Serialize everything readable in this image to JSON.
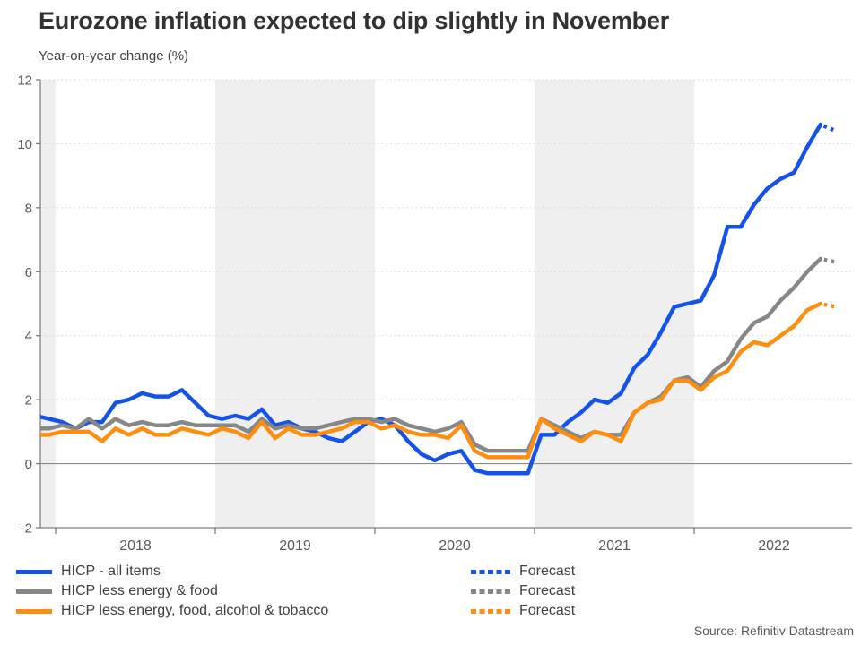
{
  "header": {
    "title": "Eurozone inflation expected to dip slightly in November",
    "subtitle": "Year-on-year change (%)"
  },
  "footer": {
    "source": "Source: Refinitiv Datastream"
  },
  "colors": {
    "blue": "#1553E8",
    "gray": "#878787",
    "orange": "#FF8E0F",
    "band": "#EFEFEF",
    "grid_dotted": "#D9D9D9",
    "zero_line": "#8C8C8C",
    "axis": "#808080",
    "axis_text": "#595959",
    "title_text": "#323232",
    "legend_text": "#404040"
  },
  "chart_data": {
    "type": "line",
    "title": "Eurozone inflation expected to dip slightly in November",
    "ylabel": "Year-on-year change (%)",
    "xlabel": "",
    "frequency": "monthly",
    "x_start": "Nov 2017",
    "x_end_actual": "Oct 2022",
    "x_forecast_point": "Nov 2022",
    "x_tick_labels": [
      "2018",
      "2019",
      "2020",
      "2021",
      "2022"
    ],
    "shaded_year_bands": [
      "late 2017",
      "2019",
      "2021"
    ],
    "ylim": [
      -2,
      12
    ],
    "y_ticks": [
      -2,
      0,
      2,
      4,
      6,
      8,
      10,
      12
    ],
    "grid": "horizontal dotted, solid line at zero",
    "legend_position": "bottom",
    "forecast_label": "Forecast",
    "series": [
      {
        "name": "HICP - all items",
        "color": "#1553E8",
        "values": [
          1.5,
          1.4,
          1.3,
          1.1,
          1.3,
          1.3,
          1.9,
          2.0,
          2.2,
          2.1,
          2.1,
          2.3,
          1.9,
          1.5,
          1.4,
          1.5,
          1.4,
          1.7,
          1.2,
          1.3,
          1.1,
          1.0,
          0.8,
          0.7,
          1.0,
          1.3,
          1.4,
          1.2,
          0.7,
          0.3,
          0.1,
          0.3,
          0.4,
          -0.2,
          -0.3,
          -0.3,
          -0.3,
          -0.3,
          0.9,
          0.9,
          1.3,
          1.6,
          2.0,
          1.9,
          2.2,
          3.0,
          3.4,
          4.1,
          4.9,
          5.0,
          5.1,
          5.9,
          7.4,
          7.4,
          8.1,
          8.6,
          8.9,
          9.1,
          9.9,
          10.6
        ],
        "forecast_value": 10.4
      },
      {
        "name": "HICP less energy & food",
        "color": "#878787",
        "values": [
          1.1,
          1.1,
          1.2,
          1.1,
          1.4,
          1.1,
          1.4,
          1.2,
          1.3,
          1.2,
          1.2,
          1.3,
          1.2,
          1.2,
          1.2,
          1.2,
          1.0,
          1.4,
          1.1,
          1.2,
          1.1,
          1.1,
          1.2,
          1.3,
          1.4,
          1.4,
          1.3,
          1.4,
          1.2,
          1.1,
          1.0,
          1.1,
          1.3,
          0.6,
          0.4,
          0.4,
          0.4,
          0.4,
          1.4,
          1.2,
          1.0,
          0.8,
          1.0,
          0.9,
          0.9,
          1.6,
          1.9,
          2.1,
          2.6,
          2.7,
          2.4,
          2.9,
          3.2,
          3.9,
          4.4,
          4.6,
          5.1,
          5.5,
          6.0,
          6.4
        ],
        "forecast_value": 6.3
      },
      {
        "name": "HICP less energy, food, alcohol & tobacco",
        "color": "#FF8E0F",
        "values": [
          0.9,
          0.9,
          1.0,
          1.0,
          1.0,
          0.7,
          1.1,
          0.9,
          1.1,
          0.9,
          0.9,
          1.1,
          1.0,
          0.9,
          1.1,
          1.0,
          0.8,
          1.3,
          0.8,
          1.1,
          0.9,
          0.9,
          1.0,
          1.1,
          1.3,
          1.3,
          1.1,
          1.2,
          1.0,
          0.9,
          0.9,
          0.8,
          1.2,
          0.4,
          0.2,
          0.2,
          0.2,
          0.2,
          1.4,
          1.1,
          0.9,
          0.7,
          1.0,
          0.9,
          0.7,
          1.6,
          1.9,
          2.0,
          2.6,
          2.6,
          2.3,
          2.7,
          2.9,
          3.5,
          3.8,
          3.7,
          4.0,
          4.3,
          4.8,
          5.0
        ],
        "forecast_value": 4.9
      }
    ]
  }
}
